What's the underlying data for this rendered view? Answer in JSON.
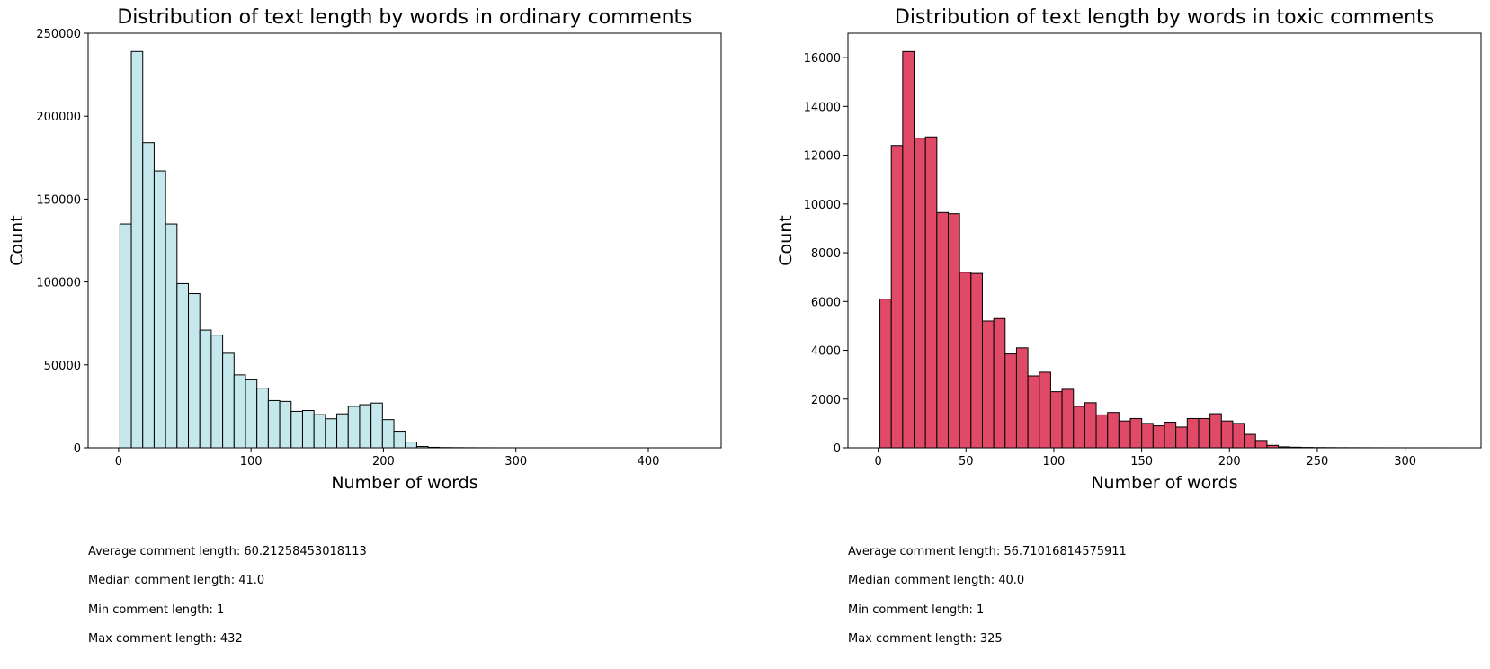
{
  "chart_data": [
    {
      "type": "bar",
      "title": "Distribution of text length by words in ordinary comments",
      "xlabel": "Number of words",
      "ylabel": "Count",
      "xlim": [
        -23,
        455
      ],
      "ylim": [
        0,
        250000
      ],
      "xticks": [
        0,
        100,
        200,
        300,
        400
      ],
      "yticks": [
        0,
        50000,
        100000,
        150000,
        200000,
        250000
      ],
      "bin_start": 1,
      "bin_width": 8.62,
      "values": [
        135000,
        239000,
        184000,
        167000,
        135000,
        99000,
        93000,
        71000,
        68000,
        57000,
        44000,
        41000,
        36000,
        28500,
        28000,
        22000,
        22500,
        20000,
        17500,
        20500,
        25000,
        26000,
        27000,
        17000,
        10000,
        3500,
        800,
        300,
        150,
        100,
        60,
        40,
        30,
        20,
        15,
        10,
        8,
        6,
        5,
        4,
        3,
        2,
        2,
        1,
        1,
        1,
        1,
        1,
        1,
        1
      ],
      "color": "#c4e8eb",
      "edgecolor": "#000000",
      "grid": false
    },
    {
      "type": "bar",
      "title": "Distribution of text length by words in toxic comments",
      "xlabel": "Number of words",
      "ylabel": "Count",
      "xlim": [
        -17.2,
        343.2
      ],
      "ylim": [
        0,
        17000
      ],
      "xticks": [
        0,
        50,
        100,
        150,
        200,
        250,
        300
      ],
      "yticks": [
        0,
        2000,
        4000,
        6000,
        8000,
        10000,
        12000,
        14000,
        16000
      ],
      "bin_start": 1,
      "bin_width": 6.48,
      "values": [
        6100,
        12400,
        16250,
        12700,
        12750,
        9650,
        9600,
        7200,
        7150,
        5200,
        5300,
        3850,
        4100,
        2950,
        3100,
        2300,
        2400,
        1700,
        1850,
        1350,
        1450,
        1100,
        1200,
        1000,
        900,
        1050,
        850,
        1200,
        1200,
        1400,
        1100,
        1000,
        550,
        300,
        100,
        40,
        25,
        15,
        10,
        8,
        6,
        5,
        4,
        3,
        2,
        2,
        1,
        1,
        1,
        1
      ],
      "color": "#e04a67",
      "edgecolor": "#000000",
      "grid": false
    }
  ],
  "stats": [
    {
      "average": "Average comment length: 60.21258453018113",
      "median": "Median comment length: 41.0",
      "min": "Min comment length: 1",
      "max": "Max comment length: 432"
    },
    {
      "average": "Average comment length: 56.71016814575911",
      "median": "Median comment length: 40.0",
      "min": "Min comment length: 1",
      "max": "Max comment length: 325"
    }
  ]
}
